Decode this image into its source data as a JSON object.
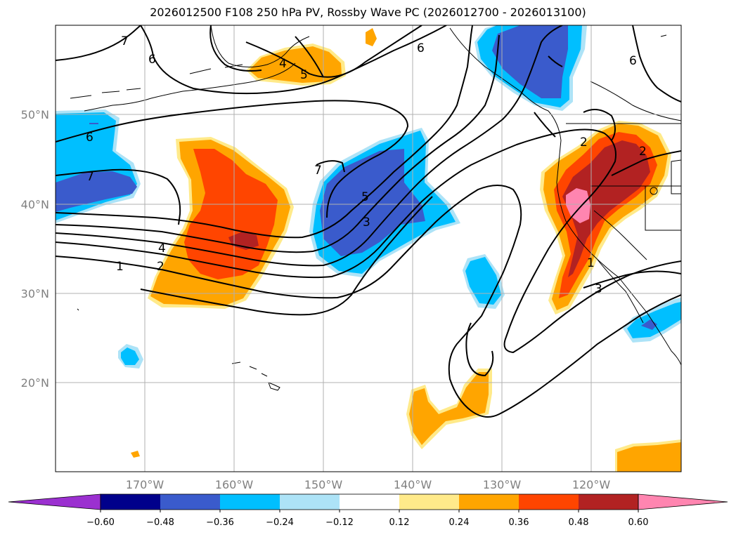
{
  "title": "2026012500 F108 250 hPa PV, Rossby Wave PC (2026012700 - 2026013100)",
  "lat_labels": [
    "50°N",
    "40°N",
    "30°N",
    "20°N"
  ],
  "lon_labels": [
    "170°W",
    "160°W",
    "150°W",
    "140°W",
    "130°W",
    "120°W"
  ],
  "colorbar": {
    "ticks": [
      "−0.60",
      "−0.48",
      "−0.36",
      "−0.24",
      "−0.12",
      "0.12",
      "0.24",
      "0.36",
      "0.48",
      "0.60"
    ],
    "colors": [
      "#9b30d0",
      "#00008b",
      "#3a5bcc",
      "#00bfff",
      "#ade3f7",
      "#ffffff",
      "#ffea8a",
      "#ffa500",
      "#ff4500",
      "#b22222",
      "#ff85b0"
    ]
  },
  "contour_labels": [
    "7",
    "6",
    "6",
    "4",
    "5",
    "6",
    "6",
    "7",
    "7",
    "5",
    "3",
    "4",
    "2",
    "1",
    "2",
    "3",
    "1",
    "2"
  ],
  "colors": {
    "blue": "#3a5bcc",
    "cyan": "#00bfff",
    "lightblue": "#ade3f7",
    "yellow": "#ffea8a",
    "orange": "#ffa500",
    "redorange": "#ff4500",
    "darkred": "#b22222",
    "pink": "#ff85b0"
  }
}
